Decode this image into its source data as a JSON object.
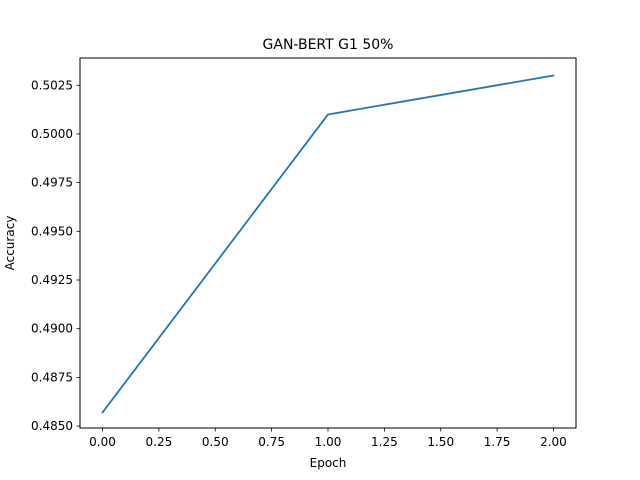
{
  "chart_data": {
    "type": "line",
    "title": "GAN-BERT G1 50%",
    "xlabel": "Epoch",
    "ylabel": "Accuracy",
    "xlim": [
      -0.1,
      2.1
    ],
    "ylim": [
      0.4849,
      0.5039
    ],
    "x_ticks": [
      0.0,
      0.25,
      0.5,
      0.75,
      1.0,
      1.25,
      1.5,
      1.75,
      2.0
    ],
    "x_tick_labels": [
      "0.00",
      "0.25",
      "0.50",
      "0.75",
      "1.00",
      "1.25",
      "1.50",
      "1.75",
      "2.00"
    ],
    "y_ticks": [
      0.485,
      0.4875,
      0.49,
      0.4925,
      0.495,
      0.4975,
      0.5,
      0.5025
    ],
    "y_tick_labels": [
      "0.4850",
      "0.4875",
      "0.4900",
      "0.4925",
      "0.4950",
      "0.4975",
      "0.5000",
      "0.5025"
    ],
    "grid": false,
    "series": [
      {
        "x": [
          0,
          1,
          2
        ],
        "values": [
          0.4857,
          0.501,
          0.503
        ],
        "color": "#1f77b4"
      }
    ]
  }
}
